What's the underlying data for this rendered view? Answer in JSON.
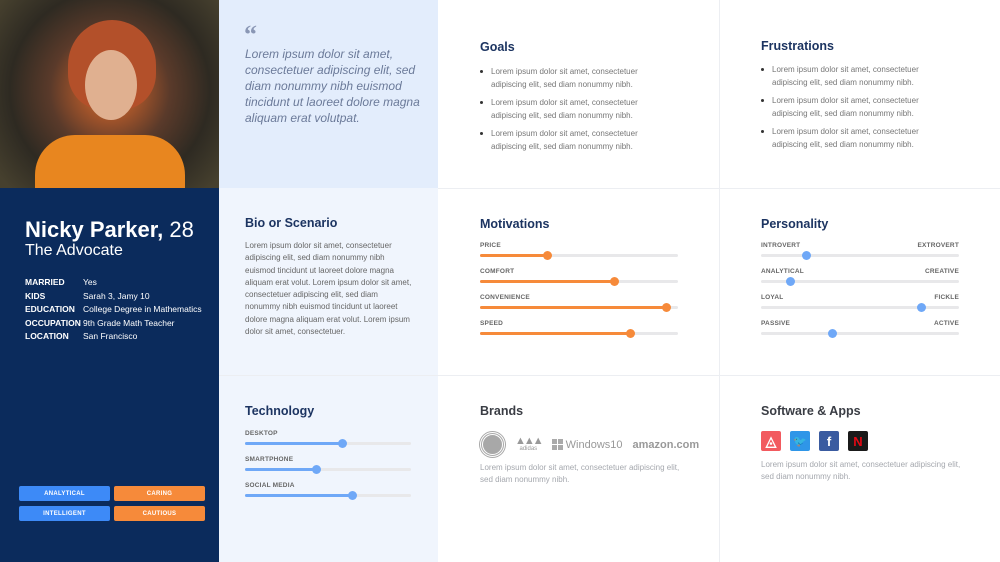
{
  "profile": {
    "name": "Nicky Parker,",
    "age": "28",
    "role": "The Advocate",
    "details": [
      {
        "key": "MARRIED",
        "value": "Yes"
      },
      {
        "key": "KIDS",
        "value": "Sarah 3, Jamy 10"
      },
      {
        "key": "EDUCATION",
        "value": "College Degree in Mathematics"
      },
      {
        "key": "OCCUPATION",
        "value": "9th Grade Math Teacher"
      },
      {
        "key": "LOCATION",
        "value": "San Francisco"
      }
    ],
    "tags": [
      {
        "label": "ANALYTICAL",
        "color": "#3d8af7"
      },
      {
        "label": "CARING",
        "color": "#f68a3a"
      },
      {
        "label": "INTELLIGENT",
        "color": "#3d8af7"
      },
      {
        "label": "CAUTIOUS",
        "color": "#f68a3a"
      }
    ]
  },
  "quote": {
    "mark": "“",
    "text": "Lorem ipsum dolor sit amet, consectetuer adipiscing elit, sed diam nonummy nibh euismod tincidunt ut laoreet dolore magna aliquam erat volutpat."
  },
  "goals": {
    "title": "Goals",
    "items": [
      "Lorem ipsum dolor sit amet, consectetuer adipiscing elit, sed diam nonummy nibh.",
      "Lorem ipsum dolor sit amet, consectetuer adipiscing elit, sed diam nonummy nibh.",
      "Lorem ipsum dolor sit amet, consectetuer adipiscing elit, sed diam nonummy nibh."
    ]
  },
  "frustrations": {
    "title": "Frustrations",
    "items": [
      "Lorem ipsum dolor sit amet, consectetuer adipiscing elit, sed diam nonummy nibh.",
      "Lorem ipsum dolor sit amet, consectetuer adipiscing elit, sed diam nonummy nibh.",
      "Lorem ipsum dolor sit amet, consectetuer adipiscing elit, sed diam nonummy nibh."
    ]
  },
  "bio": {
    "title": "Bio or Scenario",
    "text": "Lorem ipsum dolor sit amet, consectetuer adipiscing elit, sed diam nonummy nibh euismod tincidunt ut laoreet dolore magna aliquam erat volut. Lorem ipsum dolor sit amet, consectetuer adipiscing elit, sed diam nonummy nibh euismod tincidunt ut laoreet dolore magna aliquam erat volut. Lorem ipsum dolor sit amet, consectetuer."
  },
  "motivations": {
    "title": "Motivations",
    "color": "#f68a3a",
    "items": [
      {
        "label": "PRICE",
        "percent": 34
      },
      {
        "label": "COMFORT",
        "percent": 68
      },
      {
        "label": "CONVENIENCE",
        "percent": 94
      },
      {
        "label": "SPEED",
        "percent": 76
      }
    ]
  },
  "personality": {
    "title": "Personality",
    "color": "#6fa8f7",
    "items": [
      {
        "left": "INTROVERT",
        "right": "EXTROVERT",
        "percent": 23
      },
      {
        "left": "ANALYTICAL",
        "right": "CREATIVE",
        "percent": 15
      },
      {
        "left": "LOYAL",
        "right": "FICKLE",
        "percent": 81
      },
      {
        "left": "PASSIVE",
        "right": "ACTIVE",
        "percent": 36
      }
    ]
  },
  "technology": {
    "title": "Technology",
    "color": "#6fa8f7",
    "items": [
      {
        "label": "DESKTOP",
        "percent": 59
      },
      {
        "label": "SMARTPHONE",
        "percent": 43
      },
      {
        "label": "SOCIAL MEDIA",
        "percent": 65
      }
    ]
  },
  "brands": {
    "title": "Brands",
    "logos": [
      "starbucks",
      "adidas",
      "Windows10",
      "amazon.com"
    ],
    "adidas_text": "adidas",
    "windows_text": "Windows10",
    "amazon_text": "amazon.com",
    "text": "Lorem ipsum dolor sit amet, consectetuer adipiscing elit, sed diam nonummy nibh."
  },
  "apps": {
    "title": "Software & Apps",
    "items": [
      {
        "name": "airbnb",
        "color": "#f25a5f"
      },
      {
        "name": "twitter",
        "color": "#2f96e8"
      },
      {
        "name": "facebook",
        "color": "#3a5ba0",
        "glyph": "f"
      },
      {
        "name": "netflix",
        "color": "#1a1a1a",
        "glyph": "N"
      }
    ],
    "text": "Lorem ipsum dolor sit amet, consectetuer adipiscing elit, sed diam nonummy nibh."
  }
}
